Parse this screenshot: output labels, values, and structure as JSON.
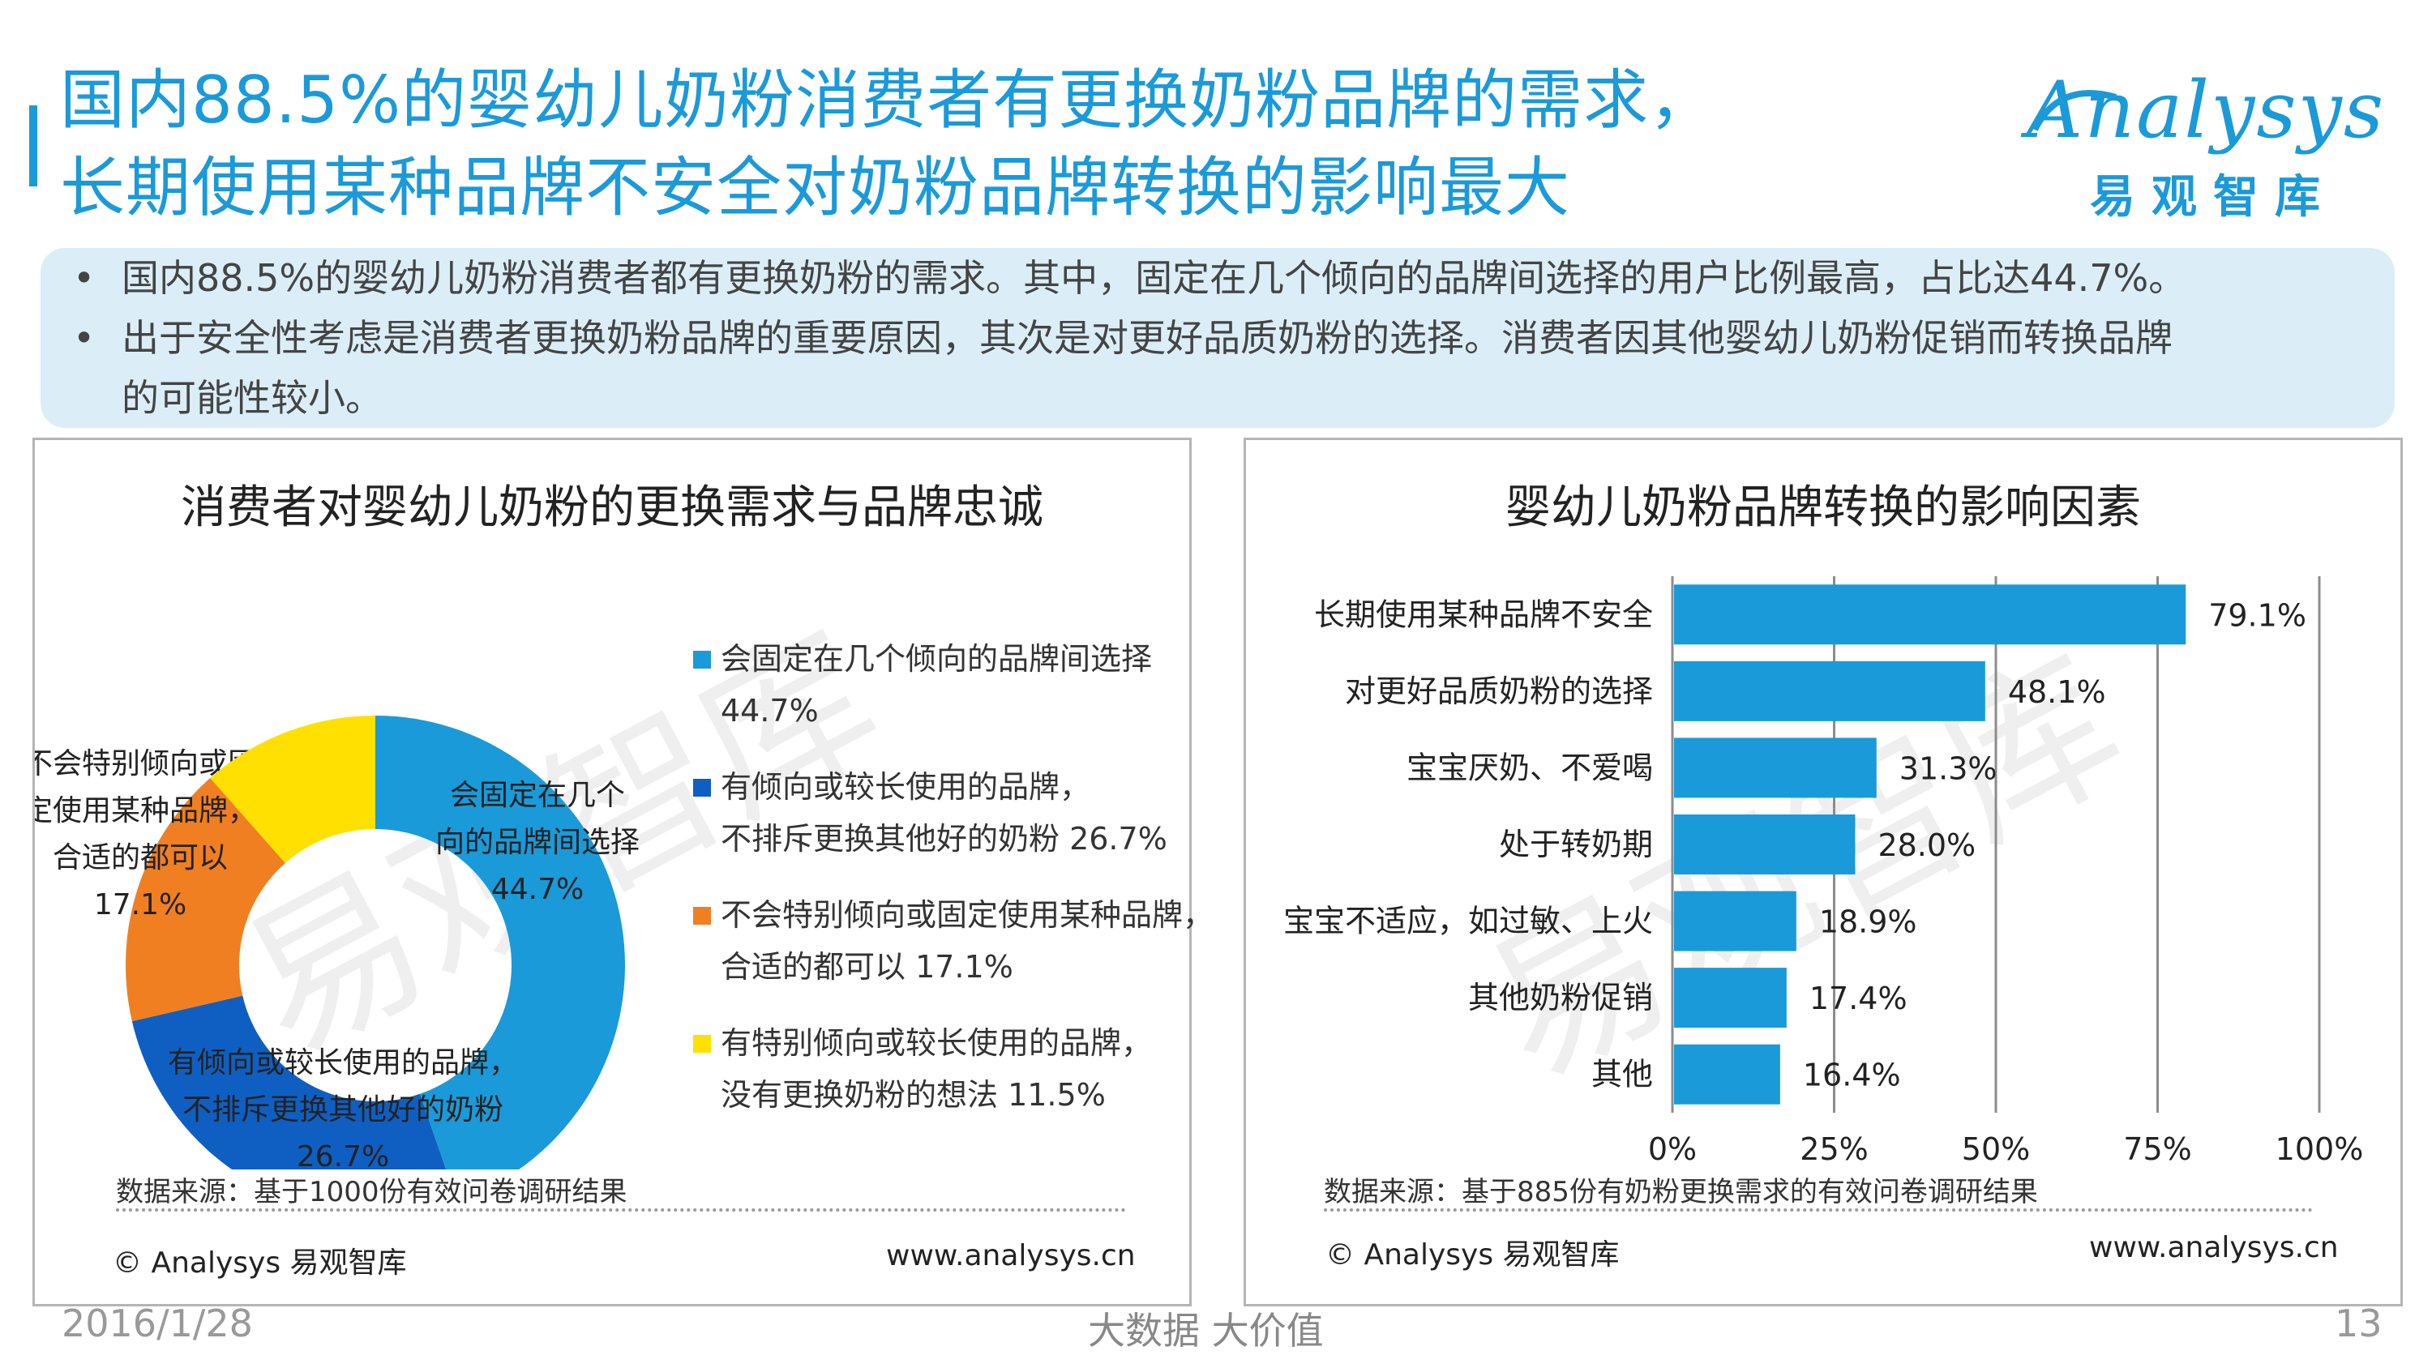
{
  "header": {
    "title_line1": "国内88.5%的婴幼儿奶粉消费者有更换奶粉品牌的需求，",
    "title_line2": "长期使用某种品牌不安全对奶粉品牌转换的影响最大"
  },
  "logo": {
    "word": "Analysys",
    "chinese": "易观智库"
  },
  "summary": {
    "bullets": [
      "国内88.5%的婴幼儿奶粉消费者都有更换奶粉的需求。其中，固定在几个倾向的品牌间选择的用户比例最高，占比达44.7%。",
      "出于安全性考虑是消费者更换奶粉品牌的重要原因，其次是对更好品质奶粉的选择。消费者因其他婴幼儿奶粉促销而转换品牌",
      "的可能性较小。"
    ]
  },
  "watermark": "易观智库",
  "left_panel": {
    "title": "消费者对婴幼儿奶粉的更换需求与品牌忠诚",
    "source": "数据来源：基于1000份有效问卷调研结果",
    "copyright": "© Analysys 易观智库",
    "url": "www.analysys.cn",
    "slice_labels": [
      [
        "会固定在几个",
        "向的品牌间选择",
        "44.7%"
      ],
      [
        "有倾向或较长使用的品牌，",
        "不排斥更换其他好的奶粉",
        "26.7%"
      ],
      [
        "不会特别倾向或固",
        "定使用某种品牌，",
        "合适的都可以",
        "17.1%"
      ],
      []
    ],
    "legend": [
      [
        "会固定在几个倾向的品牌间选择",
        "44.7%"
      ],
      [
        "有倾向或较长使用的品牌，",
        "不排斥更换其他好的奶粉  26.7%"
      ],
      [
        "不会特别倾向或固定使用某种品牌，",
        "合适的都可以  17.1%"
      ],
      [
        "有特别倾向或较长使用的品牌，",
        "没有更换奶粉的想法  11.5%"
      ]
    ]
  },
  "right_panel": {
    "title": "婴幼儿奶粉品牌转换的影响因素",
    "source": "数据来源：基于885份有奶粉更换需求的有效问卷调研结果",
    "copyright": "© Analysys 易观智库",
    "url": "www.analysys.cn"
  },
  "chart_data": [
    {
      "type": "pie",
      "title": "消费者对婴幼儿奶粉的更换需求与品牌忠诚",
      "categories": [
        "会固定在几个倾向的品牌间选择",
        "有倾向或较长使用的品牌，不排斥更换其他好的奶粉",
        "不会特别倾向或固定使用某种品牌，合适的都可以",
        "有特别倾向或较长使用的品牌，没有更换奶粉的想法"
      ],
      "values": [
        44.7,
        26.7,
        17.1,
        11.5
      ],
      "colors": [
        "#1a9ad9",
        "#0f5fc2",
        "#f07f22",
        "#ffe000"
      ],
      "legend": "right"
    },
    {
      "type": "bar",
      "orientation": "horizontal",
      "title": "婴幼儿奶粉品牌转换的影响因素",
      "categories": [
        "长期使用某种品牌不安全",
        "对更好品质奶粉的选择",
        "宝宝厌奶、不爱喝",
        "处于转奶期",
        "宝宝不适应，如过敏、上火",
        "其他奶粉促销",
        "其他"
      ],
      "values": [
        79.1,
        48.1,
        31.3,
        28.0,
        18.9,
        17.4,
        16.4
      ],
      "value_labels": [
        "79.1%",
        "48.1%",
        "31.3%",
        "28.0%",
        "18.9%",
        "17.4%",
        "16.4%"
      ],
      "xlim": [
        0,
        100
      ],
      "xticks": [
        "0%",
        "25%",
        "50%",
        "75%",
        "100%"
      ],
      "color": "#1a9ad9",
      "grid": true
    }
  ],
  "footer": {
    "date": "2016/1/28",
    "slogan": "大数据  大价值",
    "page": "13"
  }
}
